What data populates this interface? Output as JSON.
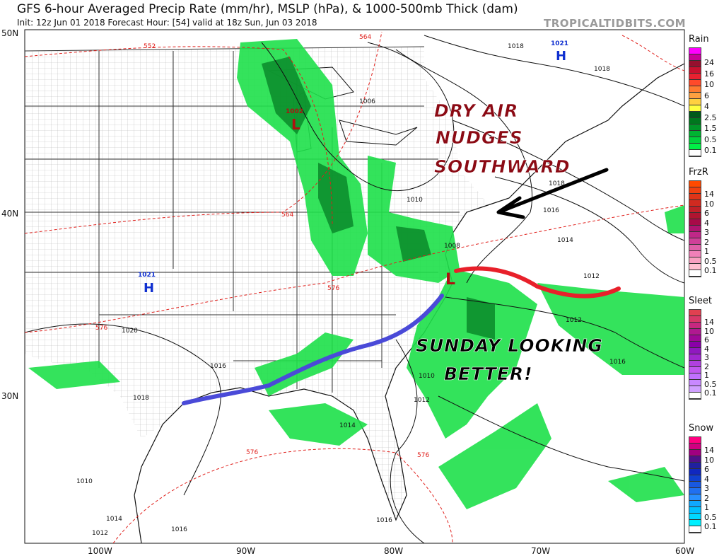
{
  "header": {
    "title": "GFS 6-hour Averaged Precip Rate (mm/hr), MSLP (hPa), & 1000-500mb Thick (dam)",
    "subtitle": "Init: 12z Jun 01 2018   Forecast Hour: [54]   valid at 18z Sun, Jun 03 2018",
    "brand": "TROPICALTIDBITS.COM"
  },
  "axes": {
    "lat_labels": [
      "50N",
      "40N",
      "30N"
    ],
    "lon_labels": [
      "100W",
      "90W",
      "80W",
      "70W",
      "60W"
    ]
  },
  "pressure_centers": [
    {
      "type": "H",
      "value": "1021",
      "where": "Oklahoma/Kansas"
    },
    {
      "type": "H",
      "value": "1021",
      "where": "New Brunswick"
    },
    {
      "type": "L",
      "value": "1002",
      "where": "Wisconsin"
    },
    {
      "type": "L",
      "value": "1008",
      "where": "North Carolina coast"
    }
  ],
  "isobar_labels": [
    "1018",
    "1018",
    "1006",
    "1010",
    "1014",
    "1016",
    "1012",
    "1012",
    "1018",
    "1020",
    "1016",
    "1010",
    "1012",
    "1014",
    "1016",
    "1010",
    "1014",
    "1012",
    "1016",
    "1018",
    "1016"
  ],
  "thickness_labels": [
    "552",
    "564",
    "564",
    "576",
    "576",
    "576",
    "576"
  ],
  "annotations": {
    "dry_air": [
      "DRY AIR",
      "NUDGES",
      "SOUTHWARD"
    ],
    "sunday": [
      "SUNDAY LOOKING",
      "BETTER!"
    ],
    "dry_air_color": "#8b0a14",
    "sunday_color": "#000000",
    "warm_front_color": "#e8202a",
    "cold_front_color": "#4a4ad8"
  },
  "legends": [
    {
      "name": "Rain",
      "labels": [
        "24",
        "16",
        "10",
        "6",
        "4",
        "2.5",
        "1.5",
        "0.5",
        "0.1"
      ],
      "colors": [
        "#ff00ff",
        "#c8009a",
        "#96102e",
        "#c8102e",
        "#e82030",
        "#ff4a2a",
        "#ff7a30",
        "#ffa040",
        "#ffd040",
        "#ffff40",
        "#005a1a",
        "#00781e",
        "#009628",
        "#00b432",
        "#00d23c",
        "#00f046",
        "#ffffff"
      ]
    },
    {
      "name": "FrzR",
      "labels": [
        "14",
        "10",
        "6",
        "4",
        "3",
        "2",
        "1",
        "0.5",
        "0.1"
      ],
      "colors": [
        "#ff4a00",
        "#f04010",
        "#e03418",
        "#d02a20",
        "#c02028",
        "#b01430",
        "#a80a48",
        "#b01470",
        "#c02888",
        "#d04098",
        "#e060a8",
        "#f080b8",
        "#f8a0c0",
        "#ffc0d0",
        "#ffffff"
      ]
    },
    {
      "name": "Sleet",
      "labels": [
        "14",
        "10",
        "6",
        "4",
        "3",
        "2",
        "1",
        "0.5",
        "0.1"
      ],
      "colors": [
        "#e04050",
        "#d83868",
        "#c82880",
        "#b01890",
        "#a00898",
        "#8a00a8",
        "#9018c0",
        "#a028d0",
        "#b040e0",
        "#c058f0",
        "#c070ff",
        "#c888ff",
        "#d0a0ff",
        "#ffffff"
      ]
    },
    {
      "name": "Snow",
      "labels": [
        "14",
        "10",
        "6",
        "4",
        "3",
        "2",
        "1",
        "0.5",
        "0.1"
      ],
      "colors": [
        "#ff0080",
        "#d00080",
        "#a00080",
        "#501088",
        "#2020a0",
        "#1028c0",
        "#1040d0",
        "#1858e0",
        "#2070f0",
        "#2890ff",
        "#10a8ff",
        "#00c0ff",
        "#00d8ff",
        "#00f0ff",
        "#ffffff"
      ]
    }
  ]
}
